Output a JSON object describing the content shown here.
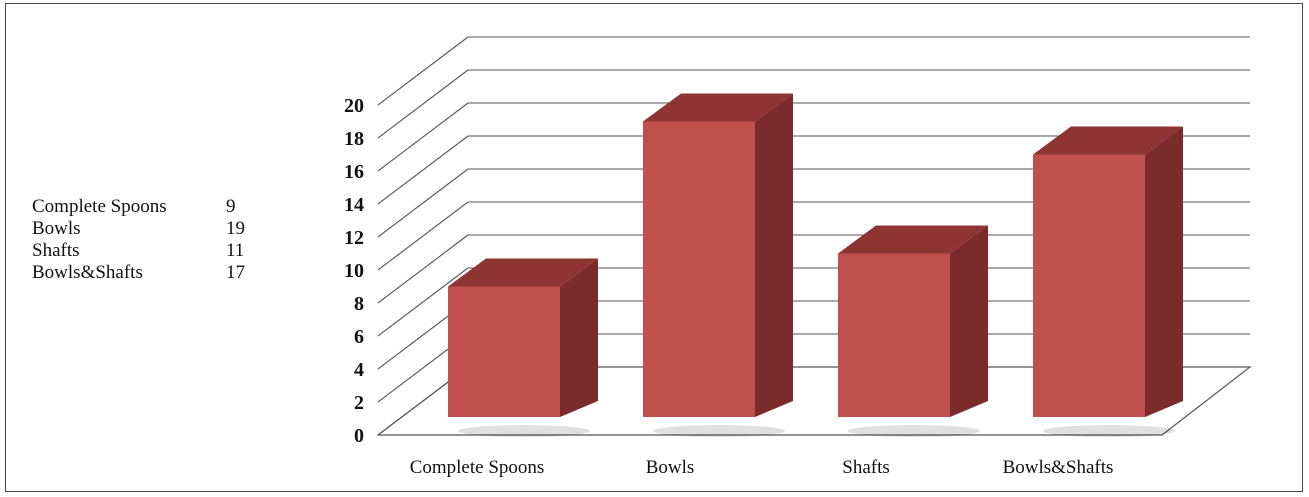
{
  "legend_table": [
    {
      "name": "Complete Spoons",
      "value": "9"
    },
    {
      "name": "Bowls",
      "value": "19"
    },
    {
      "name": "Shafts",
      "value": "11"
    },
    {
      "name": "Bowls&Shafts",
      "value": "17"
    }
  ],
  "chart_data": {
    "type": "bar",
    "categories": [
      "Complete Spoons",
      "Bowls",
      "Shafts",
      "Bowls&Shafts"
    ],
    "values": [
      9,
      19,
      11,
      17
    ],
    "ylim": [
      0,
      20
    ],
    "yticks": [
      0,
      2,
      4,
      6,
      8,
      10,
      12,
      14,
      16,
      18,
      20
    ],
    "grid": true,
    "style": "3d-column",
    "colors": {
      "front": "#c0504d",
      "side": "#7b2b2b",
      "top": "#8e3432",
      "grid": "#555555"
    }
  }
}
